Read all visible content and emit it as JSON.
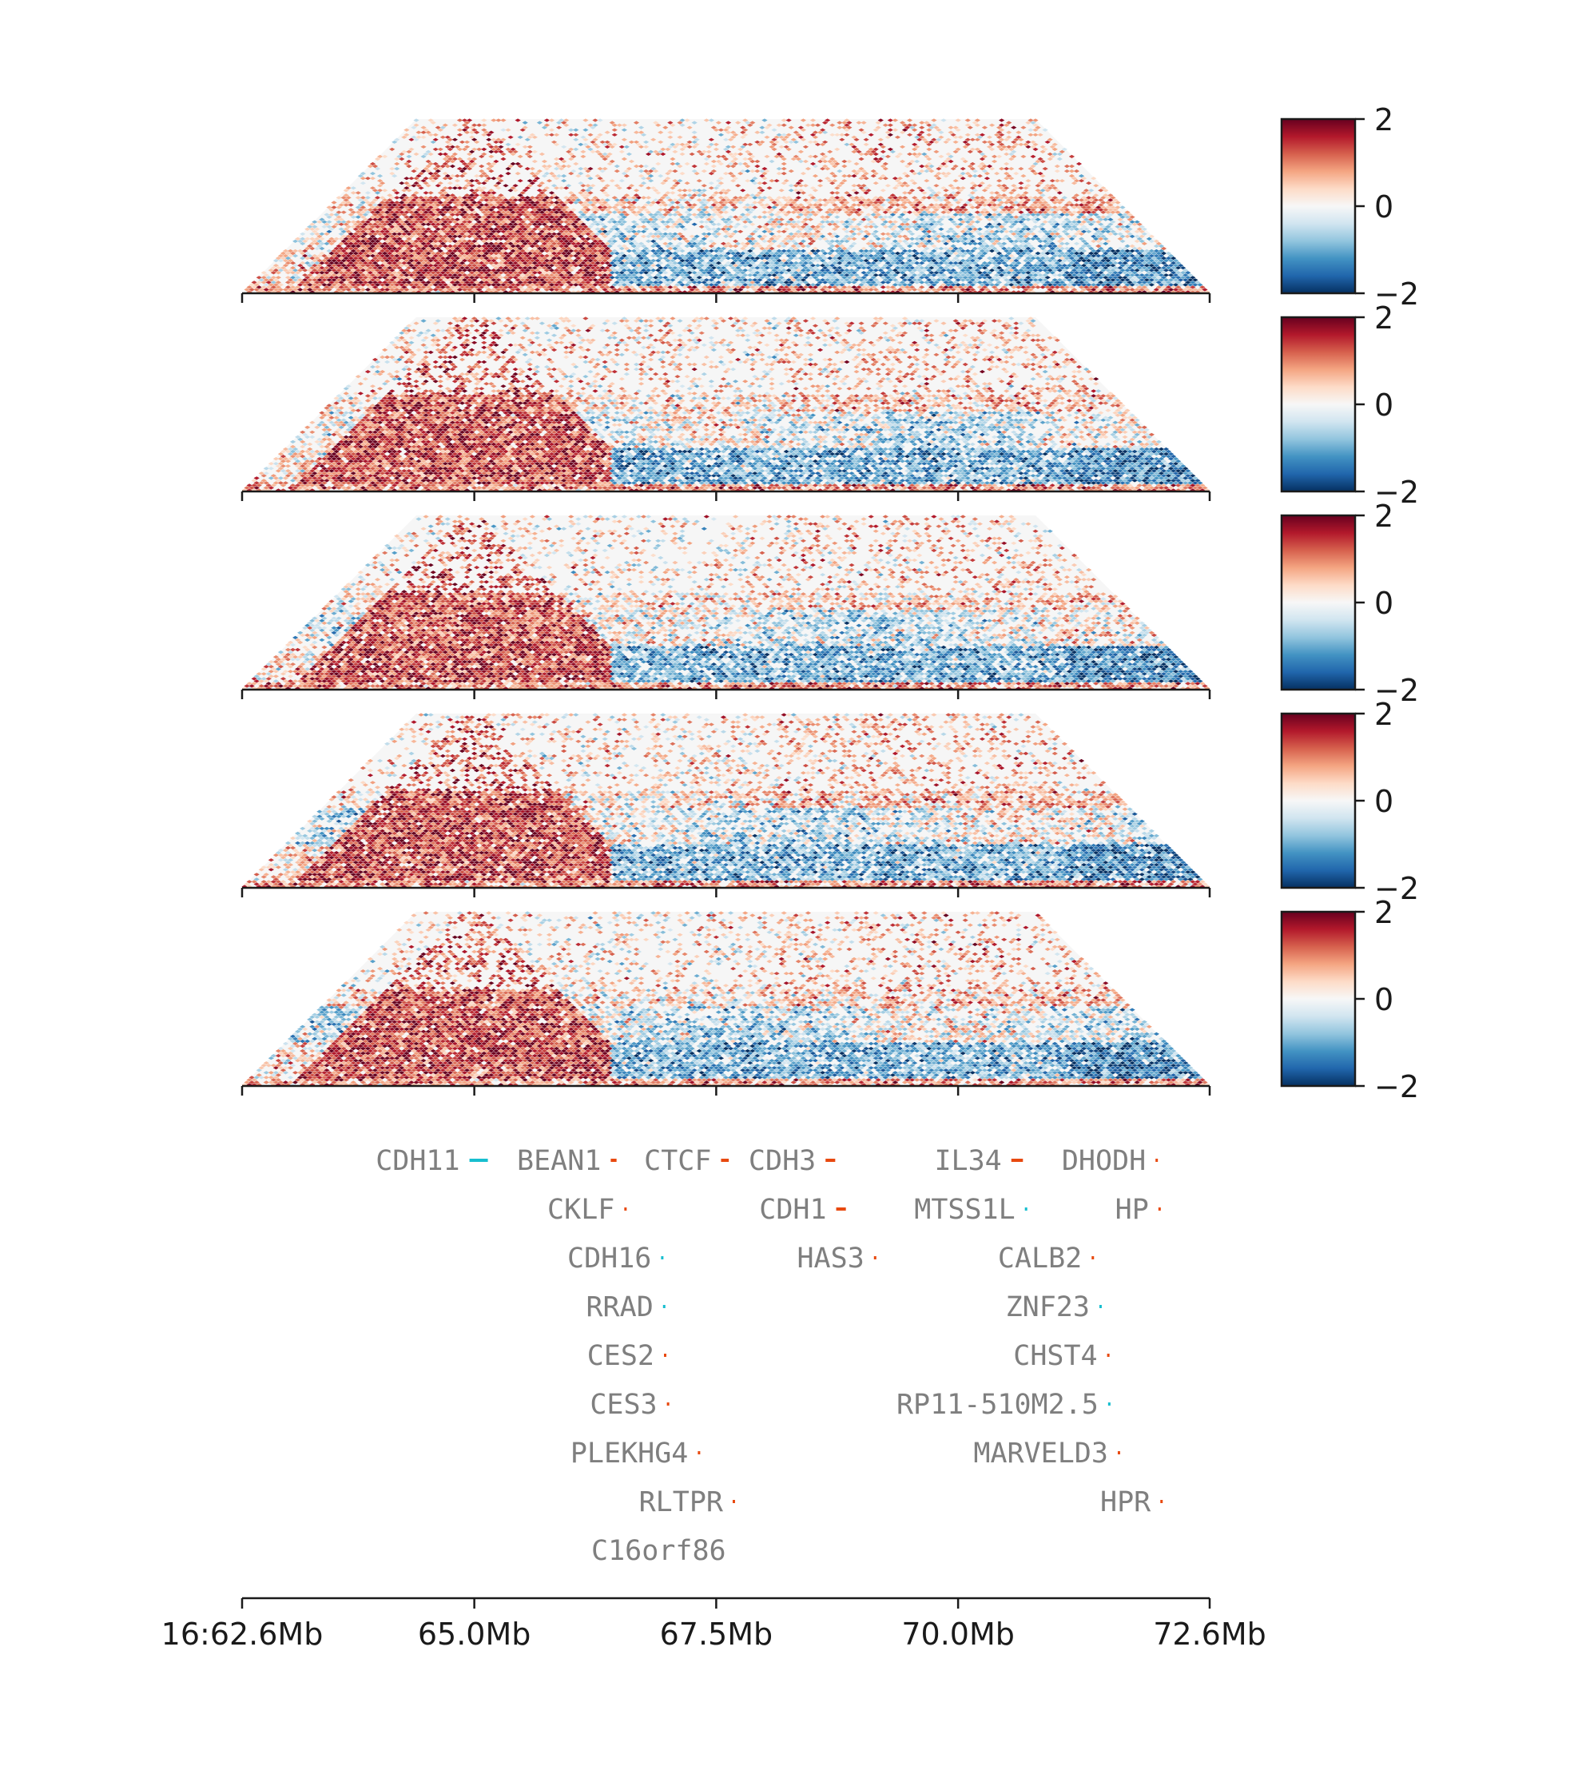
{
  "chart_data": {
    "type": "heatmap",
    "title": "",
    "description_free": true,
    "chromosome": "16",
    "region": [
      62.6,
      72.6
    ],
    "region_units": "Mb",
    "axis": {
      "ticks": [
        62.6,
        65.0,
        67.5,
        70.0,
        72.6
      ],
      "tick_labels": [
        "16:62.6Mb",
        "65.0Mb",
        "67.5Mb",
        "70.0Mb",
        "72.6Mb"
      ]
    },
    "n_panels": 5,
    "colormap": "RdBu_r",
    "colorbar": {
      "min": -2,
      "max": 2,
      "ticks": [
        2,
        0,
        -2
      ],
      "tick_labels": [
        "2",
        "0",
        "−2"
      ]
    },
    "panels": [
      {
        "seed": 11,
        "upper_right": 0.9
      },
      {
        "seed": 23,
        "upper_right": 0.7
      },
      {
        "seed": 37,
        "upper_right": 0.6
      },
      {
        "seed": 41,
        "upper_right": 0.8
      },
      {
        "seed": 59,
        "upper_right": 0.7
      }
    ],
    "genes": [
      {
        "name": "CDH11",
        "start": 64.95,
        "end": 65.14,
        "strand": "-",
        "color": "#17becf"
      },
      {
        "name": "BEAN1",
        "start": 66.41,
        "end": 66.47,
        "strand": "+",
        "color": "#e8490f"
      },
      {
        "name": "CTCF",
        "start": 67.55,
        "end": 67.63,
        "strand": "+",
        "color": "#e8490f"
      },
      {
        "name": "CDH3",
        "start": 68.63,
        "end": 68.73,
        "strand": "+",
        "color": "#e8490f"
      },
      {
        "name": "IL34",
        "start": 70.55,
        "end": 70.67,
        "strand": "+",
        "color": "#e8490f"
      },
      {
        "name": "DHODH",
        "start": 72.04,
        "end": 72.06,
        "strand": "+",
        "color": "#e8490f"
      },
      {
        "name": "CKLF",
        "start": 66.55,
        "end": 66.57,
        "strand": "+",
        "color": "#e8490f"
      },
      {
        "name": "CDH1",
        "start": 68.74,
        "end": 68.84,
        "strand": "+",
        "color": "#e8490f"
      },
      {
        "name": "MTSS1L",
        "start": 70.69,
        "end": 70.71,
        "strand": "-",
        "color": "#17becf"
      },
      {
        "name": "HP",
        "start": 72.07,
        "end": 72.09,
        "strand": "+",
        "color": "#e8490f"
      },
      {
        "name": "CDH16",
        "start": 66.93,
        "end": 66.95,
        "strand": "-",
        "color": "#17becf"
      },
      {
        "name": "HAS3",
        "start": 69.13,
        "end": 69.15,
        "strand": "+",
        "color": "#e8490f"
      },
      {
        "name": "CALB2",
        "start": 71.38,
        "end": 71.4,
        "strand": "+",
        "color": "#e8490f"
      },
      {
        "name": "RRAD",
        "start": 66.95,
        "end": 66.97,
        "strand": "-",
        "color": "#17becf"
      },
      {
        "name": "ZNF23",
        "start": 71.46,
        "end": 71.48,
        "strand": "-",
        "color": "#17becf"
      },
      {
        "name": "CES2",
        "start": 66.96,
        "end": 66.98,
        "strand": "+",
        "color": "#e8490f"
      },
      {
        "name": "CHST4",
        "start": 71.54,
        "end": 71.56,
        "strand": "+",
        "color": "#e8490f"
      },
      {
        "name": "CES3",
        "start": 66.99,
        "end": 67.01,
        "strand": "+",
        "color": "#e8490f"
      },
      {
        "name": "RP11-510M2.5",
        "start": 71.55,
        "end": 71.57,
        "strand": "-",
        "color": "#17becf"
      },
      {
        "name": "PLEKHG4",
        "start": 67.31,
        "end": 67.33,
        "strand": "+",
        "color": "#e8490f"
      },
      {
        "name": "MARVELD3",
        "start": 71.65,
        "end": 71.67,
        "strand": "+",
        "color": "#e8490f"
      },
      {
        "name": "RLTPR",
        "start": 67.67,
        "end": 67.69,
        "strand": "+",
        "color": "#e8490f"
      },
      {
        "name": "HPR",
        "start": 72.09,
        "end": 72.11,
        "strand": "+",
        "color": "#e8490f"
      },
      {
        "name": "C16orf86",
        "start": 67.7,
        "end": 67.71,
        "strand": "+",
        "color": "#ffffff"
      }
    ]
  }
}
